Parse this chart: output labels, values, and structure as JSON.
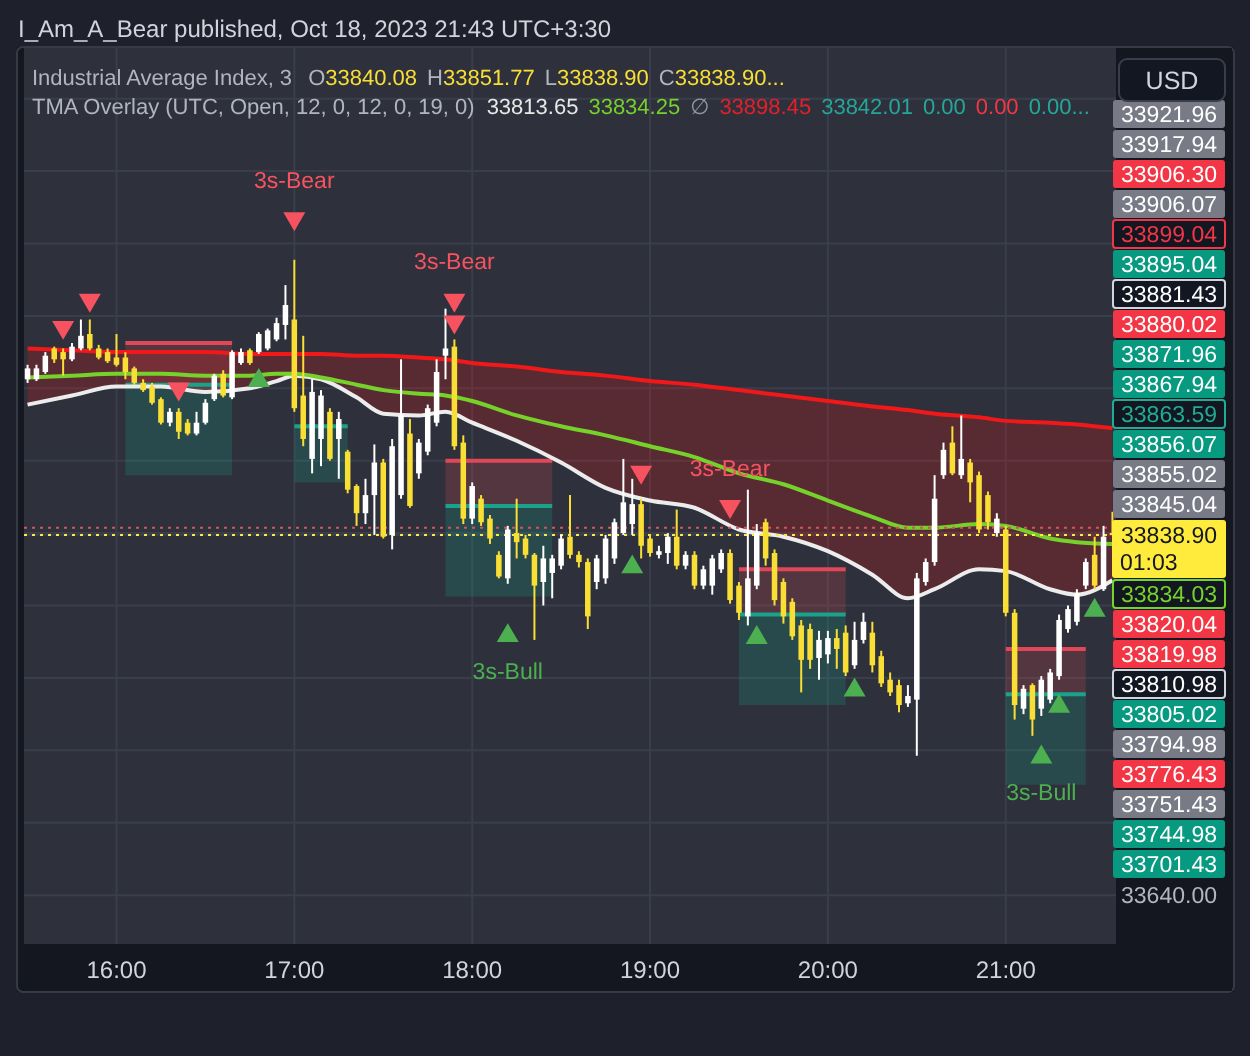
{
  "chart_data": {
    "type": "candlestick",
    "title": "Industrial Average Index, 3",
    "subtitle": "TMA Overlay (UTC, Open, 12, 0, 12, 0, 19, 0)",
    "ylabel": "USD",
    "xlim": [
      15.48,
      21.62
    ],
    "xticks": [
      {
        "value": 16,
        "label": "16:00"
      },
      {
        "value": 17,
        "label": "17:00"
      },
      {
        "value": 18,
        "label": "18:00"
      },
      {
        "value": 19,
        "label": "19:00"
      },
      {
        "value": 20,
        "label": "20:00"
      },
      {
        "value": 21,
        "label": "21:00"
      }
    ],
    "ylim": [
      33613,
      34108
    ],
    "yticks": [
      {
        "value": 33640,
        "label": "33640.00"
      },
      {
        "value": 33680,
        "label": null
      },
      {
        "value": 33720,
        "label": null
      },
      {
        "value": 33760,
        "label": null
      },
      {
        "value": 33800,
        "label": null
      },
      {
        "value": 33838.9,
        "label": "33838.90"
      },
      {
        "value": 33840,
        "label": null
      },
      {
        "value": 33880,
        "label": null
      },
      {
        "value": 33920,
        "label": null
      },
      {
        "value": 33960,
        "label": null
      },
      {
        "value": 34000,
        "label": null
      },
      {
        "value": 34040,
        "label": null
      },
      {
        "value": 34080,
        "label": null
      }
    ],
    "grid": true,
    "x": [
      15.5,
      15.55,
      15.6,
      15.65,
      15.7,
      15.75,
      15.8,
      15.85,
      15.9,
      15.95,
      16,
      16.05,
      16.1,
      16.15,
      16.2,
      16.25,
      16.3,
      16.35,
      16.4,
      16.45,
      16.5,
      16.55,
      16.6,
      16.65,
      16.7,
      16.75,
      16.8,
      16.85,
      16.9,
      16.95,
      17,
      17.05,
      17.1,
      17.15,
      17.2,
      17.25,
      17.3,
      17.35,
      17.4,
      17.45,
      17.5,
      17.55,
      17.6,
      17.65,
      17.7,
      17.75,
      17.8,
      17.85,
      17.9,
      17.95,
      18,
      18.05,
      18.1,
      18.15,
      18.2,
      18.25,
      18.3,
      18.35,
      18.4,
      18.45,
      18.5,
      18.55,
      18.6,
      18.65,
      18.7,
      18.75,
      18.8,
      18.85,
      18.9,
      18.95,
      19,
      19.05,
      19.1,
      19.15,
      19.2,
      19.25,
      19.3,
      19.35,
      19.4,
      19.45,
      19.5,
      19.55,
      19.6,
      19.65,
      19.7,
      19.75,
      19.8,
      19.85,
      19.9,
      19.95,
      20,
      20.05,
      20.1,
      20.15,
      20.2,
      20.25,
      20.3,
      20.35,
      20.4,
      20.45,
      20.5,
      20.55,
      20.6,
      20.65,
      20.7,
      20.75,
      20.8,
      20.85,
      20.9,
      20.95,
      21,
      21.05,
      21.1,
      21.15,
      21.2,
      21.25,
      21.3,
      21.35,
      21.4,
      21.45,
      21.5,
      21.55,
      21.6
    ],
    "ohlc": [
      [
        33925,
        33933,
        33923,
        33931
      ],
      [
        33925,
        33933,
        33924,
        33931
      ],
      [
        33929,
        33940,
        33928,
        33938
      ],
      [
        33942,
        33943,
        33934,
        33936
      ],
      [
        33940,
        33942,
        33927,
        33936
      ],
      [
        33936,
        33945,
        33935,
        33943
      ],
      [
        33942,
        33958,
        33941,
        33949
      ],
      [
        33950,
        33958,
        33941,
        33942
      ],
      [
        33942,
        33944,
        33936,
        33937
      ],
      [
        33940,
        33942,
        33934,
        33935
      ],
      [
        33937,
        33950,
        33932,
        33933
      ],
      [
        33937,
        33940,
        33925,
        33929
      ],
      [
        33931,
        33932,
        33922,
        33923
      ],
      [
        33923,
        33925,
        33918,
        33919
      ],
      [
        33921,
        33923,
        33911,
        33912
      ],
      [
        33914,
        33915,
        33900,
        33901
      ],
      [
        33901,
        33909,
        33899,
        33907
      ],
      [
        33907,
        33909,
        33892,
        33896
      ],
      [
        33901,
        33903,
        33894,
        33895
      ],
      [
        33895,
        33907,
        33894,
        33901
      ],
      [
        33901,
        33914,
        33900,
        33912
      ],
      [
        33914,
        33928,
        33913,
        33927
      ],
      [
        33928,
        33930,
        33915,
        33916
      ],
      [
        33915,
        33941,
        33914,
        33940
      ],
      [
        33934,
        33942,
        33933,
        33940
      ],
      [
        33941,
        33942,
        33933,
        33934
      ],
      [
        33940,
        33951,
        33939,
        33950
      ],
      [
        33942,
        33953,
        33941,
        33952
      ],
      [
        33947,
        33959,
        33946,
        33956
      ],
      [
        33955,
        33977,
        33947,
        33966
      ],
      [
        33958,
        33991,
        33907,
        33909
      ],
      [
        33916,
        33949,
        33888,
        33892
      ],
      [
        33881,
        33925,
        33873,
        33918
      ],
      [
        33892,
        33919,
        33877,
        33916
      ],
      [
        33907,
        33909,
        33880,
        33881
      ],
      [
        33892,
        33907,
        33870,
        33903
      ],
      [
        33885,
        33886,
        33862,
        33864
      ],
      [
        33866,
        33867,
        33844,
        33851
      ],
      [
        33851,
        33870,
        33845,
        33861
      ],
      [
        33861,
        33889,
        33839,
        33879
      ],
      [
        33879,
        33881,
        33837,
        33838
      ],
      [
        33839,
        33892,
        33831,
        33888
      ],
      [
        33861,
        33936,
        33859,
        33905
      ],
      [
        33895,
        33903,
        33854,
        33855
      ],
      [
        33873,
        33892,
        33870,
        33890
      ],
      [
        33885,
        33911,
        33883,
        33909
      ],
      [
        33901,
        33936,
        33899,
        33929
      ],
      [
        33938,
        33964,
        33925,
        33942
      ],
      [
        33943,
        33947,
        33886,
        33888
      ],
      [
        33890,
        33894,
        33845,
        33848
      ],
      [
        33848,
        33868,
        33845,
        33866
      ],
      [
        33859,
        33861,
        33844,
        33846
      ],
      [
        33848,
        33850,
        33834,
        33837
      ],
      [
        33828,
        33830,
        33815,
        33816
      ],
      [
        33815,
        33844,
        33812,
        33842
      ],
      [
        33840,
        33859,
        33826,
        33835
      ],
      [
        33837,
        33839,
        33826,
        33828
      ],
      [
        33828,
        33829,
        33781,
        33811
      ],
      [
        33813,
        33833,
        33800,
        33826
      ],
      [
        33818,
        33828,
        33804,
        33826
      ],
      [
        33822,
        33839,
        33820,
        33837
      ],
      [
        33838,
        33861,
        33826,
        33828
      ],
      [
        33828,
        33830,
        33821,
        33824
      ],
      [
        33824,
        33826,
        33787,
        33794
      ],
      [
        33813,
        33828,
        33809,
        33826
      ],
      [
        33815,
        33839,
        33812,
        33837
      ],
      [
        33826,
        33848,
        33823,
        33846
      ],
      [
        33840,
        33881,
        33839,
        33857
      ],
      [
        33845,
        33870,
        33839,
        33856
      ],
      [
        33856,
        33859,
        33826,
        33833
      ],
      [
        33837,
        33839,
        33827,
        33829
      ],
      [
        33828,
        33833,
        33826,
        33830
      ],
      [
        33829,
        33840,
        33823,
        33838
      ],
      [
        33838,
        33853,
        33820,
        33822
      ],
      [
        33822,
        33830,
        33820,
        33828
      ],
      [
        33828,
        33830,
        33809,
        33811
      ],
      [
        33811,
        33822,
        33809,
        33820
      ],
      [
        33811,
        33828,
        33806,
        33826
      ],
      [
        33820,
        33831,
        33818,
        33829
      ],
      [
        33829,
        33831,
        33801,
        33803
      ],
      [
        33811,
        33813,
        33792,
        33796
      ],
      [
        33794,
        33864,
        33789,
        33815
      ],
      [
        33811,
        33845,
        33809,
        33840
      ],
      [
        33846,
        33848,
        33822,
        33826
      ],
      [
        33829,
        33831,
        33800,
        33803
      ],
      [
        33813,
        33815,
        33790,
        33794
      ],
      [
        33802,
        33804,
        33781,
        33783
      ],
      [
        33789,
        33792,
        33752,
        33770
      ],
      [
        33787,
        33790,
        33765,
        33770
      ],
      [
        33771,
        33786,
        33759,
        33781
      ],
      [
        33773,
        33786,
        33768,
        33782
      ],
      [
        33782,
        33787,
        33765,
        33776
      ],
      [
        33785,
        33789,
        33761,
        33763
      ],
      [
        33767,
        33791,
        33765,
        33781
      ],
      [
        33781,
        33796,
        33779,
        33791
      ],
      [
        33785,
        33791,
        33763,
        33767
      ],
      [
        33772,
        33775,
        33755,
        33757
      ],
      [
        33759,
        33763,
        33750,
        33752
      ],
      [
        33756,
        33759,
        33741,
        33745
      ],
      [
        33746,
        33756,
        33744,
        33750
      ],
      [
        33748,
        33818,
        33717,
        33815
      ],
      [
        33813,
        33826,
        33811,
        33824
      ],
      [
        33824,
        33872,
        33822,
        33859
      ],
      [
        33872,
        33890,
        33870,
        33886
      ],
      [
        33890,
        33899,
        33872,
        33873
      ],
      [
        33872,
        33905,
        33870,
        33881
      ],
      [
        33879,
        33881,
        33857,
        33868
      ],
      [
        33872,
        33874,
        33840,
        33842
      ],
      [
        33861,
        33863,
        33842,
        33846
      ],
      [
        33840,
        33851,
        33838,
        33848
      ],
      [
        33842,
        33844,
        33794,
        33796
      ],
      [
        33796,
        33798,
        33737,
        33745
      ],
      [
        33743,
        33756,
        33740,
        33754
      ],
      [
        33756,
        33757,
        33728,
        33737
      ],
      [
        33743,
        33761,
        33739,
        33759
      ],
      [
        33748,
        33765,
        33746,
        33763
      ],
      [
        33761,
        33795,
        33759,
        33792
      ],
      [
        33787,
        33800,
        33785,
        33798
      ],
      [
        33791,
        33809,
        33789,
        33807
      ],
      [
        33811,
        33826,
        33809,
        33824
      ],
      [
        33828,
        33838,
        33809,
        33811
      ],
      [
        33809,
        33844,
        33808,
        33838
      ],
      [
        33840.08,
        33851.77,
        33838.9,
        33838.9
      ]
    ],
    "colors": [
      "#ffffff",
      "#ffffff",
      "#ffffff",
      "#f9df35",
      "#f9df35",
      "#ffffff",
      "#ffffff",
      "#f9df35",
      "#f9df35",
      "#f9df35",
      "#f9df35",
      "#f9df35",
      "#f9df35",
      "#f9df35",
      "#f9df35",
      "#f9df35",
      "#ffffff",
      "#f9df35",
      "#f9df35",
      "#ffffff",
      "#ffffff",
      "#ffffff",
      "#f9df35",
      "#ffffff",
      "#ffffff",
      "#f9df35",
      "#ffffff",
      "#ffffff",
      "#ffffff",
      "#ffffff",
      "#f9df35",
      "#f9df35",
      "#ffffff",
      "#ffffff",
      "#f9df35",
      "#ffffff",
      "#f9df35",
      "#f9df35",
      "#ffffff",
      "#ffffff",
      "#f9df35",
      "#ffffff",
      "#ffffff",
      "#f9df35",
      "#ffffff",
      "#ffffff",
      "#ffffff",
      "#ffffff",
      "#f9df35",
      "#f9df35",
      "#ffffff",
      "#f9df35",
      "#f9df35",
      "#f9df35",
      "#ffffff",
      "#f9df35",
      "#f9df35",
      "#f9df35",
      "#ffffff",
      "#ffffff",
      "#ffffff",
      "#f9df35",
      "#f9df35",
      "#f9df35",
      "#ffffff",
      "#ffffff",
      "#ffffff",
      "#ffffff",
      "#ffffff",
      "#f9df35",
      "#f9df35",
      "#ffffff",
      "#ffffff",
      "#f9df35",
      "#ffffff",
      "#f9df35",
      "#ffffff",
      "#ffffff",
      "#ffffff",
      "#f9df35",
      "#f9df35",
      "#ffffff",
      "#ffffff",
      "#f9df35",
      "#f9df35",
      "#f9df35",
      "#f9df35",
      "#f9df35",
      "#f9df35",
      "#ffffff",
      "#ffffff",
      "#f9df35",
      "#f9df35",
      "#ffffff",
      "#ffffff",
      "#f9df35",
      "#f9df35",
      "#f9df35",
      "#f9df35",
      "#ffffff",
      "#ffffff",
      "#ffffff",
      "#ffffff",
      "#ffffff",
      "#f9df35",
      "#ffffff",
      "#f9df35",
      "#f9df35",
      "#f9df35",
      "#ffffff",
      "#f9df35",
      "#f9df35",
      "#ffffff",
      "#f9df35",
      "#ffffff",
      "#ffffff",
      "#ffffff",
      "#ffffff",
      "#ffffff",
      "#ffffff",
      "#f9df35",
      "#ffffff",
      "#f9df35"
    ],
    "series": [
      {
        "type": "line",
        "color": "#e04858",
        "x": [
          16.05,
          16.65
        ],
        "values": [
          33945,
          33945
        ],
        "lower": [
          33922,
          33922
        ],
        "upper": [
          33945,
          33945
        ]
      },
      {
        "type": "line",
        "color": "#1aa28a",
        "x": [
          16.05,
          16.65
        ],
        "values": [
          33922,
          33922
        ],
        "lower": [
          33872,
          33872
        ],
        "upper": [
          33922,
          33922
        ]
      },
      {
        "type": "line",
        "color": "#1aa28a",
        "x": [
          17.0,
          17.3
        ],
        "values": [
          33899,
          33899
        ],
        "lower": [
          33868,
          33868
        ],
        "upper": [
          33899,
          33899
        ]
      },
      {
        "type": "line",
        "color": "#e04858",
        "x": [
          17.85,
          18.45
        ],
        "values": [
          33880,
          33880
        ],
        "lower": [
          33855,
          33855
        ],
        "upper": [
          33880,
          33880
        ]
      },
      {
        "type": "line",
        "color": "#1aa28a",
        "x": [
          17.85,
          18.45
        ],
        "values": [
          33855,
          33855
        ],
        "lower": [
          33805,
          33805
        ],
        "upper": [
          33855,
          33855
        ]
      },
      {
        "type": "line",
        "color": "#e04858",
        "x": [
          19.5,
          20.1
        ],
        "values": [
          33820,
          33820
        ],
        "lower": [
          33795,
          33795
        ],
        "upper": [
          33820,
          33820
        ]
      },
      {
        "type": "line",
        "color": "#1aa28a",
        "x": [
          19.5,
          20.1
        ],
        "values": [
          33795,
          33795
        ],
        "lower": [
          33745,
          33745
        ],
        "upper": [
          33795,
          33795
        ]
      },
      {
        "type": "line",
        "color": "#e04858",
        "x": [
          21.0,
          21.45
        ],
        "values": [
          33776,
          33776
        ],
        "lower": [
          33751,
          33751
        ],
        "upper": [
          33776,
          33776
        ]
      },
      {
        "type": "line",
        "color": "#1aa28a",
        "x": [
          21.0,
          21.45
        ],
        "values": [
          33751,
          33751
        ],
        "lower": [
          33701,
          33701
        ],
        "upper": [
          33751,
          33751
        ]
      },
      {
        "type": "line",
        "color": "#ececec",
        "x": [
          15.5,
          15.75,
          16,
          16.25,
          16.5,
          16.75,
          16.9,
          17,
          17.15,
          17.35,
          17.5,
          17.7,
          17.85,
          18,
          18.25,
          18.5,
          18.75,
          19,
          19.25,
          19.5,
          19.75,
          20,
          20.25,
          20.45,
          20.6,
          20.85,
          21,
          21.25,
          21.4,
          21.6
        ],
        "values": [
          33911,
          33916,
          33921,
          33921,
          33918,
          33920,
          33924,
          33927,
          33925,
          33915,
          33906,
          33905,
          33907,
          33901,
          33891,
          33879,
          33865,
          33858,
          33854,
          33842,
          33838,
          33830,
          33817,
          33804,
          33809,
          33820,
          33819,
          33809,
          33806,
          33814
        ]
      },
      {
        "type": "line",
        "color": "#76d12a",
        "x": [
          15.5,
          15.75,
          16,
          16.25,
          16.5,
          16.75,
          16.9,
          17,
          17.15,
          17.35,
          17.5,
          17.7,
          17.85,
          18,
          18.25,
          18.5,
          18.75,
          19,
          19.25,
          19.5,
          19.75,
          20,
          20.25,
          20.45,
          20.6,
          20.85,
          21,
          21.25,
          21.4,
          21.6
        ],
        "values": [
          33926,
          33927,
          33928,
          33928,
          33927,
          33927,
          33928,
          33928,
          33926,
          33922,
          33919,
          33917,
          33916,
          33913,
          33905,
          33899,
          33894,
          33888,
          33882,
          33873,
          33867,
          33858,
          33849,
          33843,
          33843,
          33845,
          33844,
          33837,
          33835,
          33834
        ]
      },
      {
        "type": "line",
        "color": "#f01818",
        "x": [
          15.5,
          15.75,
          16,
          16.25,
          16.5,
          16.75,
          16.9,
          17,
          17.15,
          17.35,
          17.5,
          17.7,
          17.85,
          18,
          18.25,
          18.5,
          18.75,
          19,
          19.25,
          19.5,
          19.75,
          20,
          20.25,
          20.45,
          20.6,
          20.85,
          21,
          21.25,
          21.4,
          21.6
        ],
        "values": [
          33942,
          33941,
          33940,
          33940,
          33940,
          33939,
          33939,
          33939,
          33939,
          33938,
          33938,
          33937,
          33936,
          33934,
          33932,
          33929,
          33927,
          33924,
          33922,
          33919,
          33916,
          33913,
          33910,
          33908,
          33906,
          33904,
          33902,
          33901,
          33900,
          33898
        ],
        "upper": [
          33942,
          33941,
          33940,
          33940,
          33940,
          33939,
          33939,
          33939,
          33939,
          33938,
          33938,
          33937,
          33936,
          33934,
          33932,
          33929,
          33927,
          33924,
          33922,
          33919,
          33916,
          33913,
          33910,
          33908,
          33906,
          33904,
          33902,
          33901,
          33900,
          33898
        ],
        "lower": [
          33911,
          33916,
          33921,
          33921,
          33918,
          33920,
          33924,
          33927,
          33925,
          33915,
          33906,
          33905,
          33907,
          33901,
          33891,
          33879,
          33865,
          33858,
          33854,
          33842,
          33838,
          33830,
          33817,
          33804,
          33809,
          33820,
          33819,
          33809,
          33806,
          33814
        ]
      },
      {
        "type": "scatter",
        "color": "#f7525f",
        "marker": "triangle-down",
        "x": [
          15.7,
          15.85,
          16.35,
          17.0,
          17.9,
          17.9,
          18.95,
          19.45
        ],
        "values": [
          33952,
          33967,
          33918,
          34012,
          33967,
          33955,
          33872,
          33853
        ]
      },
      {
        "type": "scatter",
        "color": "#4caf50",
        "marker": "triangle",
        "x": [
          16.8,
          18.2,
          18.9,
          19.6,
          20.15,
          21.2,
          21.3,
          21.5
        ],
        "values": [
          33926,
          33785,
          33823,
          33784,
          33755,
          33718,
          33746,
          33799
        ]
      }
    ],
    "ref_lines": [
      {
        "axis": "y",
        "value": 33843,
        "color": "#d9505e",
        "line_style": "dotted"
      },
      {
        "axis": "y",
        "value": 33838.9,
        "color": "#ffeb3b",
        "line_style": "dotted"
      }
    ],
    "annotations": [
      "I_Am_A_Bear published, Oct 18, 2023 21:43 UTC+3:30",
      "O33840.08 H33851.77 L33838.90 C33838.90...",
      "33813.65 33834.25 ∅ 33898.45 33842.01 0.00 0.00 0.00...",
      "01:03",
      "33921.96",
      "33917.94",
      "33906.30",
      "33906.07",
      "33899.04",
      "33895.04",
      "33881.43",
      "33880.02",
      "33871.96",
      "33867.94",
      "33863.59",
      "33856.07",
      "33855.02",
      "33845.04",
      "33834.03",
      "33820.04",
      "33819.98",
      "33810.98",
      "33805.02",
      "33794.98",
      "33776.43",
      "33751.43",
      "33744.98",
      "33701.43",
      {
        "text": "3s-Bear",
        "x": 17.0,
        "y": 34012
      },
      {
        "text": "3s-Bear",
        "x": 17.9,
        "y": 33967
      },
      {
        "text": "3s-Bull",
        "x": 18.2,
        "y": 33785
      },
      {
        "text": "3s-Bear",
        "x": 19.45,
        "y": 33853
      },
      {
        "text": "3s-Bull",
        "x": 21.2,
        "y": 33718
      }
    ]
  }
}
